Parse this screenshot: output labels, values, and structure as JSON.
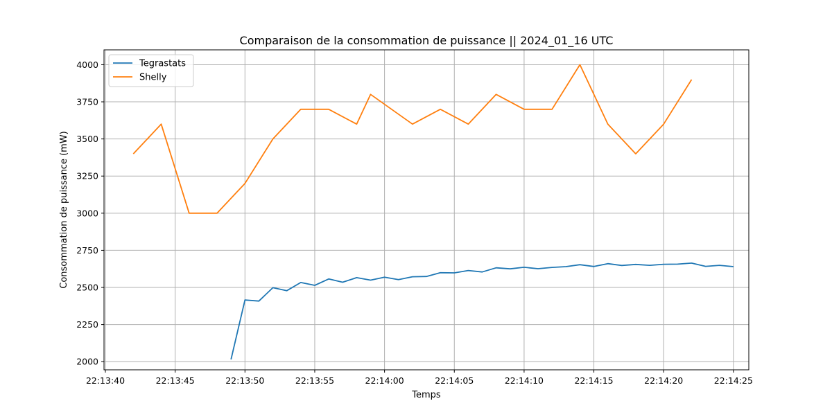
{
  "chart_data": {
    "type": "line",
    "title": "Comparaison de la consommation de puissance  ||  2024_01_16 UTC",
    "xlabel": "Temps",
    "ylabel": "Consommation de puissance (mW)",
    "x_type": "time",
    "xlim": [
      "22:13:39.9",
      "22:14:26.1"
    ],
    "ylim": [
      1945,
      4100
    ],
    "x_ticks": [
      "22:13:40",
      "22:13:45",
      "22:13:50",
      "22:13:55",
      "22:14:00",
      "22:14:05",
      "22:14:10",
      "22:14:15",
      "22:14:20",
      "22:14:25"
    ],
    "y_ticks": [
      2000,
      2250,
      2500,
      2750,
      3000,
      3250,
      3500,
      3750,
      4000
    ],
    "grid": true,
    "legend_position": "top-left",
    "series": [
      {
        "name": "Tegrastats",
        "color": "#1f77b4",
        "x": [
          "22:13:49",
          "22:13:50",
          "22:13:51",
          "22:13:52",
          "22:13:53",
          "22:13:54",
          "22:13:55",
          "22:13:56",
          "22:13:57",
          "22:13:58",
          "22:13:59",
          "22:14:00",
          "22:14:01",
          "22:14:02",
          "22:14:03",
          "22:14:04",
          "22:14:05",
          "22:14:06",
          "22:14:07",
          "22:14:08",
          "22:14:09",
          "22:14:10",
          "22:14:11",
          "22:14:12",
          "22:14:13",
          "22:14:14",
          "22:14:15",
          "22:14:16",
          "22:14:17",
          "22:14:18",
          "22:14:19",
          "22:14:20",
          "22:14:21",
          "22:14:22",
          "22:14:23",
          "22:14:24",
          "22:14:25"
        ],
        "values": [
          2015,
          2415,
          2408,
          2498,
          2478,
          2533,
          2514,
          2557,
          2535,
          2566,
          2549,
          2569,
          2553,
          2572,
          2574,
          2599,
          2598,
          2614,
          2604,
          2632,
          2625,
          2636,
          2626,
          2635,
          2640,
          2653,
          2641,
          2660,
          2648,
          2655,
          2649,
          2656,
          2657,
          2664,
          2642,
          2649,
          2640
        ]
      },
      {
        "name": "Shelly",
        "color": "#ff7f0e",
        "x": [
          "22:13:42",
          "22:13:44",
          "22:13:46",
          "22:13:48",
          "22:13:50",
          "22:13:52",
          "22:13:54",
          "22:13:56",
          "22:13:58",
          "22:13:59",
          "22:14:02",
          "22:14:04",
          "22:14:06",
          "22:14:08",
          "22:14:10",
          "22:14:12",
          "22:14:14",
          "22:14:16",
          "22:14:18",
          "22:14:20",
          "22:14:22"
        ],
        "values": [
          3400,
          3600,
          3000,
          3000,
          3200,
          3500,
          3700,
          3700,
          3600,
          3800,
          3600,
          3700,
          3600,
          3800,
          3700,
          3700,
          4000,
          3600,
          3400,
          3600,
          3900
        ]
      }
    ]
  }
}
